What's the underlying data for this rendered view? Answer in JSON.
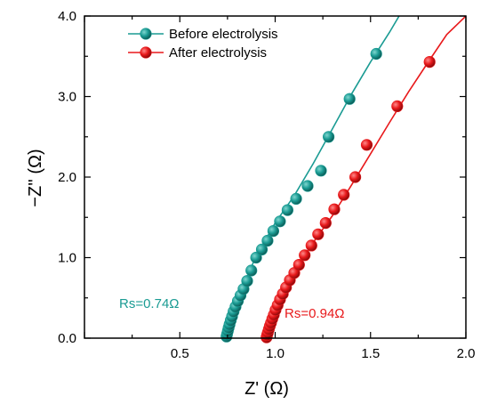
{
  "chart_data": {
    "type": "scatter",
    "title": "",
    "xlabel": "Z' (Ω)",
    "ylabel": "−Z'' (Ω)",
    "xlim": [
      0.0,
      2.0
    ],
    "ylim": [
      0.0,
      4.0
    ],
    "xticks": [
      "0.5",
      "1.0",
      "1.5",
      "2.0"
    ],
    "yticks": [
      "0.0",
      "1.0",
      "2.0",
      "3.0",
      "4.0"
    ],
    "grid": false,
    "legend_position": "top-left",
    "series": [
      {
        "name": "Before electrolysis",
        "color": "#1a9b93",
        "marker": "circle",
        "x": [
          0.745,
          0.748,
          0.752,
          0.756,
          0.761,
          0.767,
          0.774,
          0.782,
          0.792,
          0.804,
          0.818,
          0.834,
          0.853,
          0.875,
          0.9,
          0.93,
          0.96,
          0.99,
          1.025,
          1.065,
          1.11,
          1.17,
          1.24,
          1.28,
          1.39,
          1.53
        ],
        "y": [
          0.02,
          0.05,
          0.09,
          0.13,
          0.17,
          0.22,
          0.27,
          0.33,
          0.39,
          0.46,
          0.53,
          0.61,
          0.71,
          0.84,
          1.0,
          1.1,
          1.21,
          1.33,
          1.45,
          1.59,
          1.73,
          1.89,
          2.08,
          2.5,
          2.97,
          3.53
        ],
        "fit_line": {
          "x": [
            0.72,
            0.75,
            0.8,
            0.9,
            1.0,
            1.1,
            1.2,
            1.3,
            1.4,
            1.5,
            1.6,
            1.65
          ],
          "y": [
            0.0,
            0.13,
            0.48,
            1.02,
            1.43,
            1.77,
            2.17,
            2.6,
            3.03,
            3.43,
            3.8,
            4.0
          ]
        }
      },
      {
        "name": "After electrolysis",
        "color": "#e8191b",
        "marker": "circle",
        "x": [
          0.955,
          0.958,
          0.962,
          0.967,
          0.972,
          0.978,
          0.985,
          0.993,
          1.002,
          1.013,
          1.025,
          1.04,
          1.057,
          1.077,
          1.1,
          1.125,
          1.155,
          1.19,
          1.225,
          1.265,
          1.31,
          1.36,
          1.42,
          1.48,
          1.64,
          1.81
        ],
        "y": [
          0.01,
          0.04,
          0.07,
          0.11,
          0.15,
          0.19,
          0.24,
          0.29,
          0.35,
          0.41,
          0.48,
          0.55,
          0.63,
          0.72,
          0.81,
          0.91,
          1.03,
          1.15,
          1.29,
          1.43,
          1.6,
          1.78,
          2.0,
          2.4,
          2.88,
          3.43
        ],
        "fit_line": {
          "x": [
            0.93,
            0.95,
            1.0,
            1.1,
            1.2,
            1.3,
            1.4,
            1.5,
            1.6,
            1.7,
            1.8,
            1.9,
            2.0
          ],
          "y": [
            0.0,
            0.03,
            0.32,
            0.83,
            1.19,
            1.52,
            1.9,
            2.29,
            2.68,
            3.06,
            3.42,
            3.77,
            4.0
          ]
        }
      }
    ],
    "annotations": [
      {
        "text": "Rs=0.74Ω",
        "series": "Before electrolysis"
      },
      {
        "text": "Rs=0.94Ω",
        "series": "After electrolysis"
      }
    ]
  }
}
